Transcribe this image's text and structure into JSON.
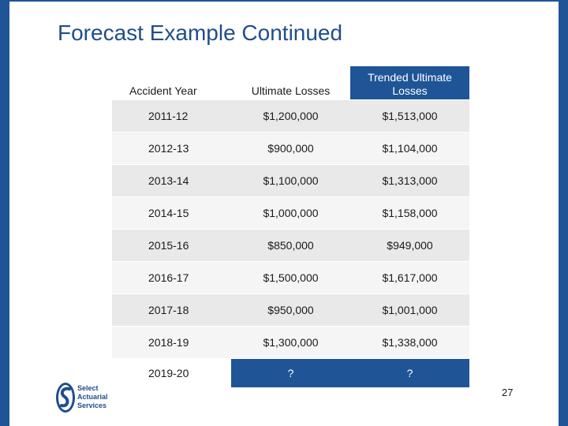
{
  "slide": {
    "title": "Forecast Example Continued",
    "page_number": "27"
  },
  "table": {
    "headers": [
      "Accident Year",
      "Ultimate Losses",
      "Trended Ultimate Losses"
    ],
    "rows": [
      [
        "2011-12",
        "$1,200,000",
        "$1,513,000"
      ],
      [
        "2012-13",
        "$900,000",
        "$1,104,000"
      ],
      [
        "2013-14",
        "$1,100,000",
        "$1,313,000"
      ],
      [
        "2014-15",
        "$1,000,000",
        "$1,158,000"
      ],
      [
        "2015-16",
        "$850,000",
        "$949,000"
      ],
      [
        "2016-17",
        "$1,500,000",
        "$1,617,000"
      ],
      [
        "2017-18",
        "$950,000",
        "$1,001,000"
      ],
      [
        "2018-19",
        "$1,300,000",
        "$1,338,000"
      ],
      [
        "2019-20",
        "?",
        "?"
      ]
    ]
  },
  "logo": {
    "lines": [
      "Select",
      "Actuarial",
      "Services"
    ]
  },
  "colors": {
    "accent": "#1f5597",
    "title": "#1f4e8c"
  }
}
